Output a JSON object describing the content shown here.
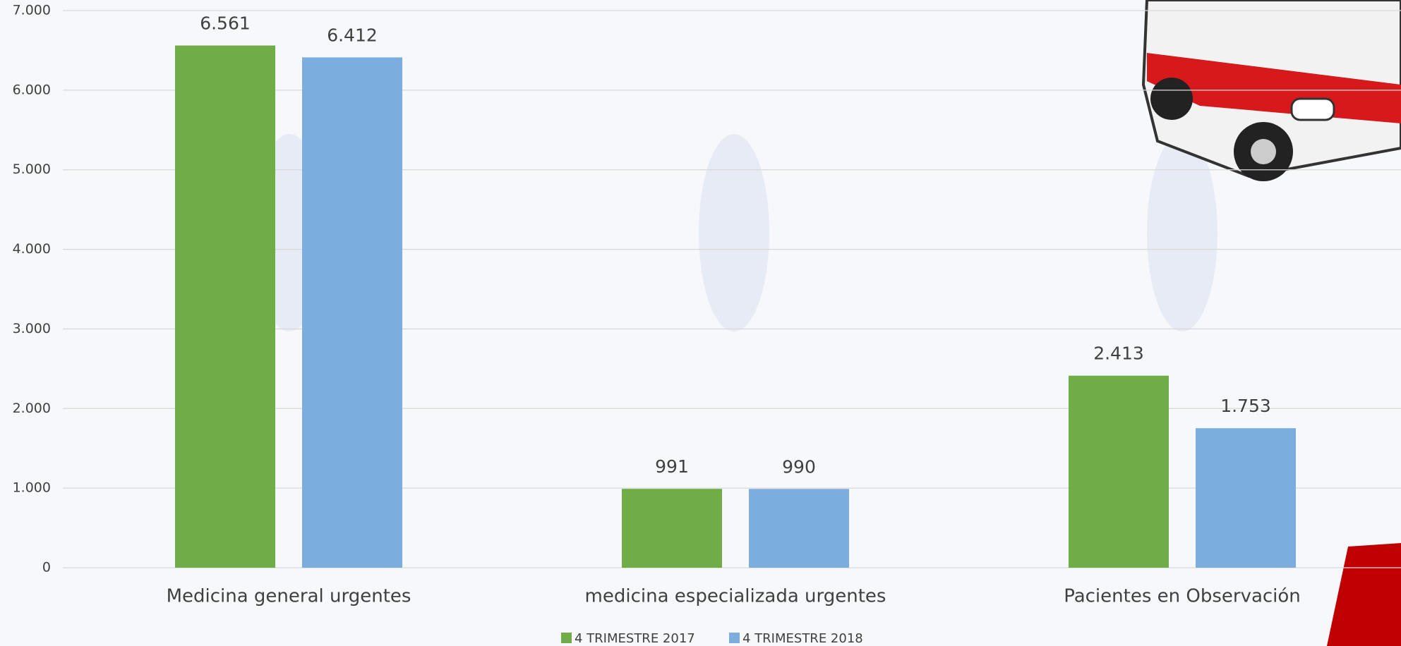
{
  "chart_data": {
    "type": "bar",
    "categories": [
      "Medicina general urgentes",
      "medicina especializada urgentes",
      "Pacientes en Observación"
    ],
    "series": [
      {
        "name": "4 TRIMESTRE 2017",
        "color": "#70ad47",
        "values": [
          6561,
          991,
          2413
        ],
        "value_labels": [
          "6.561",
          "991",
          "2.413"
        ]
      },
      {
        "name": "4 TRIMESTRE 2018",
        "color": "#7caddf",
        "values": [
          6412,
          990,
          1753
        ],
        "value_labels": [
          "6.412",
          "990",
          "1.753"
        ]
      }
    ],
    "ylim": [
      0,
      7000
    ],
    "yticks": [
      0,
      {
        "value": 1000,
        "label": "1.000"
      },
      {
        "value": 2000,
        "label": "2.000"
      },
      {
        "value": 3000,
        "label": "3.000"
      },
      {
        "value": 4000,
        "label": "4.000"
      },
      {
        "value": 5000,
        "label": "5.000"
      },
      {
        "value": 6000,
        "label": "6.000"
      },
      {
        "value": 7000,
        "label": "7.000"
      }
    ],
    "grid": true,
    "legend": "bottom"
  }
}
